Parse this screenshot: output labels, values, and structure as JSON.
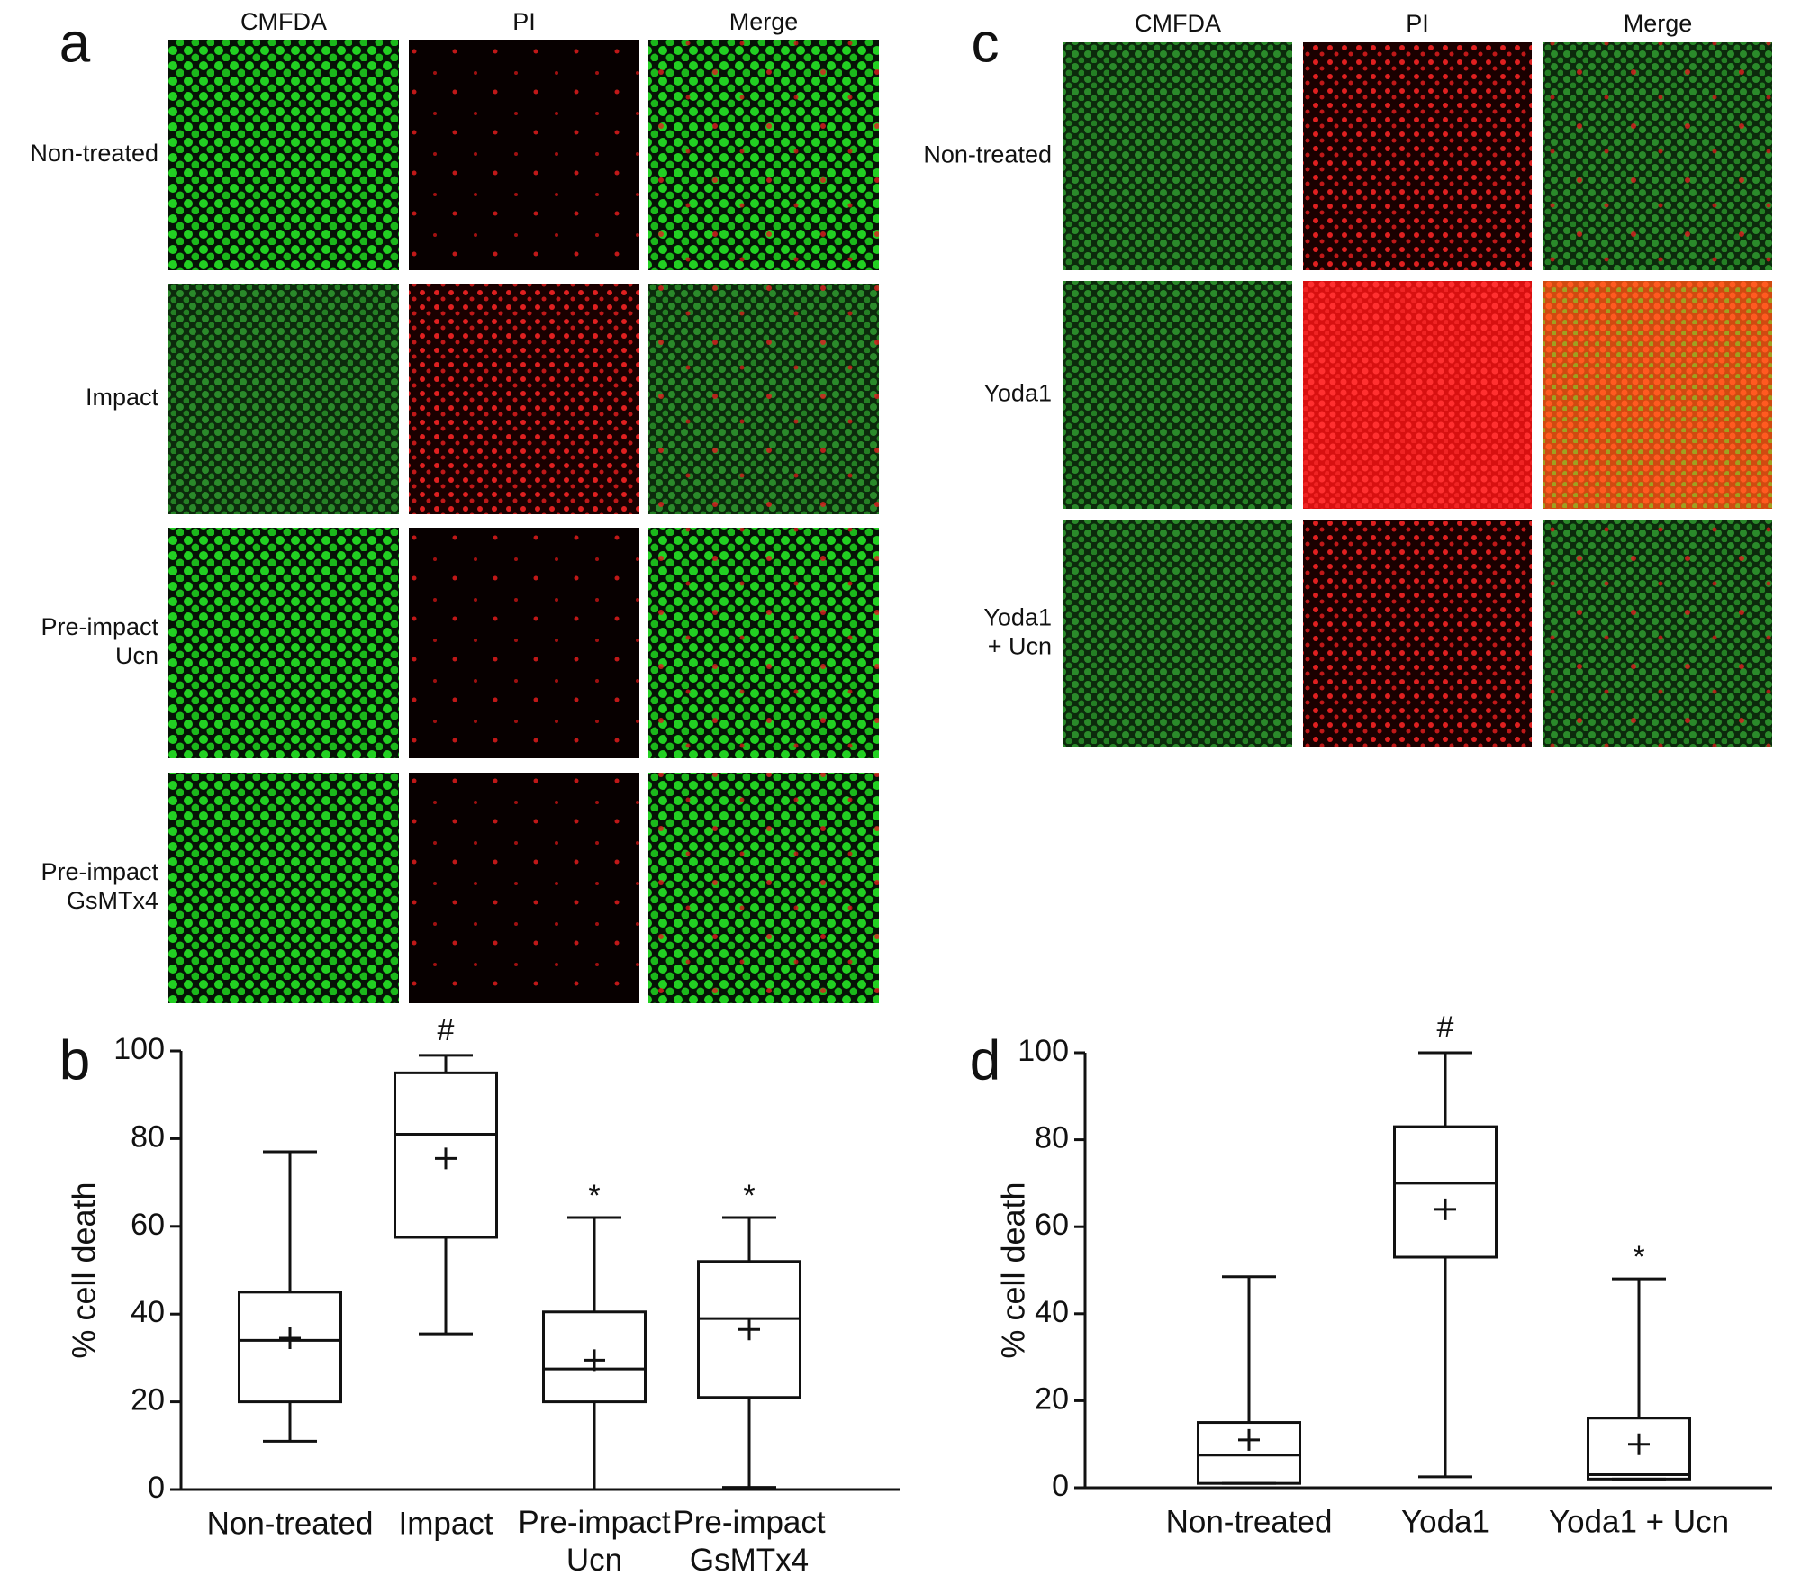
{
  "panels": [
    {
      "label": "a",
      "columns": [
        "CMFDA",
        "PI",
        "Merge"
      ],
      "rows": [
        "Non-treated",
        "Impact",
        "Pre-impact\nUcn",
        "Pre-impact\nGsMTx4"
      ]
    },
    {
      "label": "c",
      "columns": [
        "CMFDA",
        "PI",
        "Merge"
      ],
      "rows": [
        "Non-treated",
        "Yoda1",
        "Yoda1\n+ Ucn"
      ]
    }
  ],
  "chart_data": [
    {
      "type": "box",
      "panel_label": "b",
      "y_label": "% cell death",
      "categories": [
        "Non-treated",
        "Impact",
        "Pre-impact\nUcn",
        "Pre-impact\nGsMTx4"
      ],
      "min": [
        11,
        35.5,
        0,
        0.5
      ],
      "q1": [
        20,
        57.5,
        20,
        21
      ],
      "median": [
        34,
        81,
        27.5,
        39
      ],
      "q3": [
        45,
        95,
        40.5,
        52
      ],
      "max": [
        77,
        99,
        62,
        62
      ],
      "mean": [
        34.5,
        75.5,
        29.5,
        36.5
      ],
      "annotations": [
        null,
        "#",
        "*",
        "*"
      ],
      "ylim": [
        0,
        100
      ],
      "yticks": [
        0,
        20,
        40,
        60,
        80,
        100
      ]
    },
    {
      "type": "box",
      "panel_label": "d",
      "y_label": "% cell death",
      "categories": [
        "Non-treated",
        "Yoda1",
        "Yoda1 + Ucn"
      ],
      "min": [
        1,
        2.5,
        2
      ],
      "q1": [
        1,
        53,
        2
      ],
      "median": [
        7.5,
        70,
        3
      ],
      "q3": [
        15,
        83,
        16
      ],
      "max": [
        48.5,
        100,
        48
      ],
      "mean": [
        11,
        64,
        10
      ],
      "annotations": [
        null,
        "#",
        "*"
      ],
      "ylim": [
        0,
        100
      ],
      "yticks": [
        0,
        20,
        40,
        60,
        80,
        100
      ]
    }
  ]
}
